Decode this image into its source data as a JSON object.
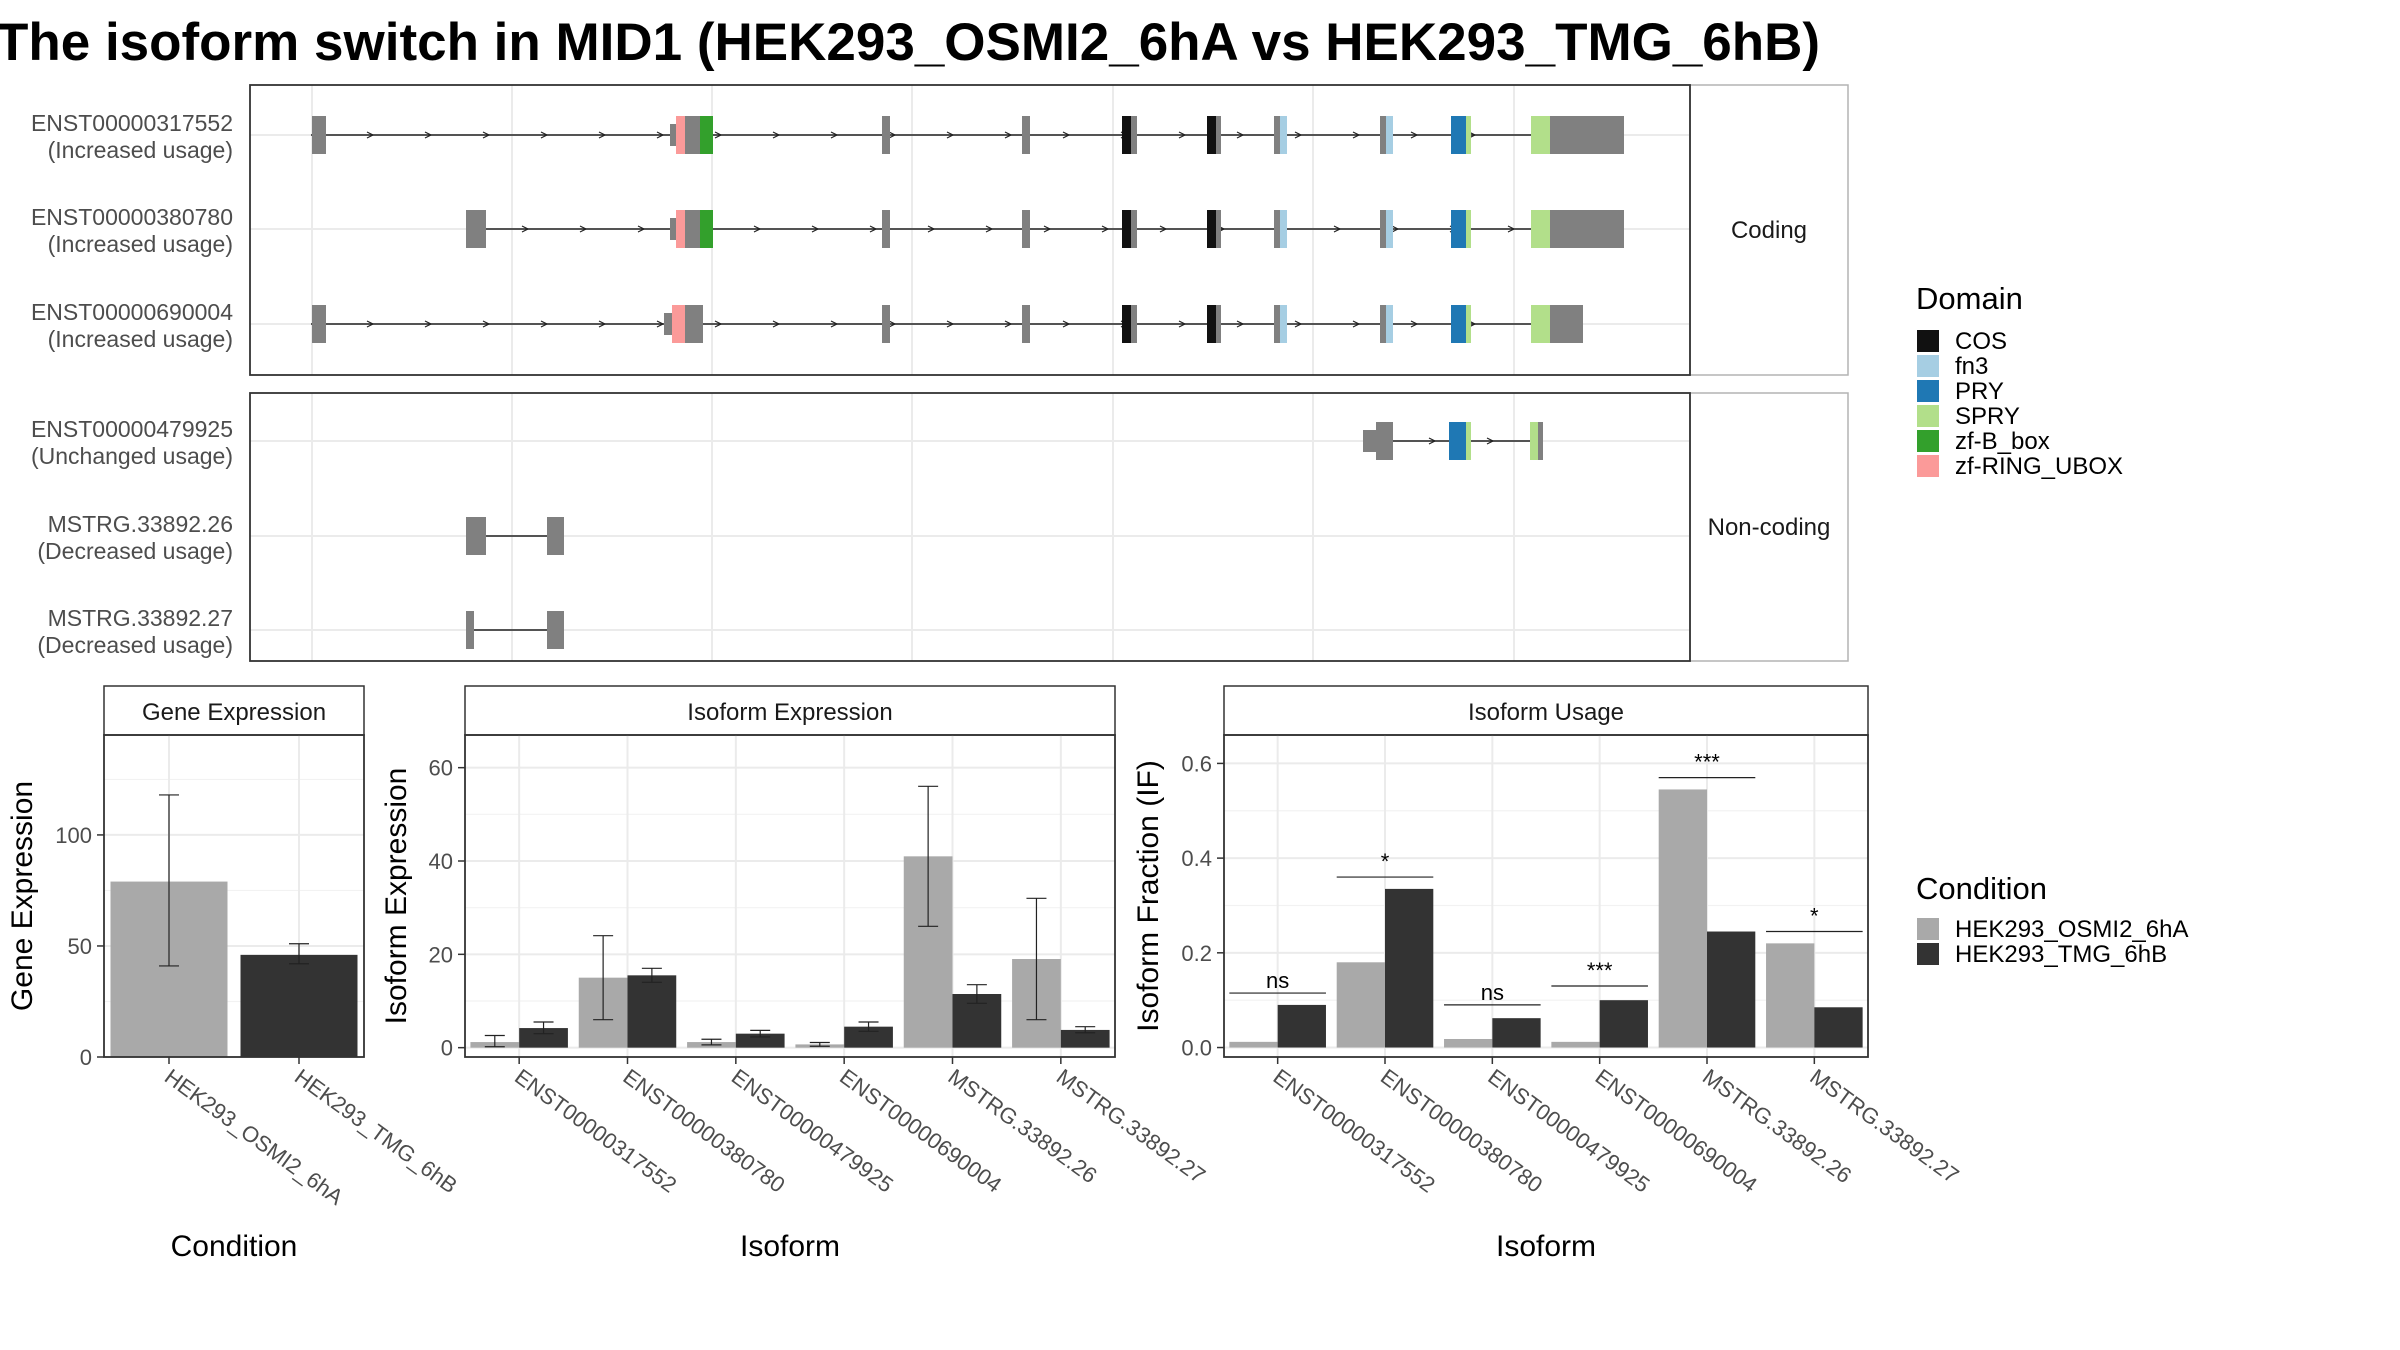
{
  "title": "The isoform switch in MID1 (HEK293_OSMI2_6hA vs HEK293_TMG_6hB)",
  "colors": {
    "domains": {
      "COS": "#111111",
      "fn3": "#a6cee3",
      "PRY": "#1f78b4",
      "SPRY": "#b2df8a",
      "zf-B_box": "#33a02c",
      "zf-RING_UBOX": "#fb9a99"
    },
    "exon": "#808080",
    "cond1": "#a9a9a9",
    "cond2": "#333333"
  },
  "legends": {
    "domain": {
      "title": "Domain",
      "items": [
        "COS",
        "fn3",
        "PRY",
        "SPRY",
        "zf-B_box",
        "zf-RING_UBOX"
      ]
    },
    "condition": {
      "title": "Condition",
      "items": [
        "HEK293_OSMI2_6hA",
        "HEK293_TMG_6hB"
      ]
    }
  },
  "structure": {
    "panels": [
      {
        "label": "Coding",
        "transcripts": [
          {
            "id": "ENST00000317552",
            "note": "(Increased usage)"
          },
          {
            "id": "ENST00000380780",
            "note": "(Increased usage)"
          },
          {
            "id": "ENST00000690004",
            "note": "(Increased usage)"
          }
        ]
      },
      {
        "label": "Non-coding",
        "transcripts": [
          {
            "id": "ENST00000479925",
            "note": "(Unchanged usage)"
          },
          {
            "id": "MSTRG.33892.26",
            "note": "(Decreased usage)"
          },
          {
            "id": "MSTRG.33892.27",
            "note": "(Decreased usage)"
          }
        ]
      }
    ]
  },
  "chart_data": [
    {
      "type": "bar",
      "title": "Gene Expression",
      "xlabel": "Condition",
      "ylabel": "Gene Expression",
      "categories": [
        "HEK293_OSMI2_6hA",
        "HEK293_TMG_6hB"
      ],
      "values": [
        79,
        46
      ],
      "errors": [
        [
          41,
          118
        ],
        [
          42,
          51
        ]
      ],
      "ylim": [
        0,
        145
      ],
      "yticks": [
        0,
        50,
        100
      ]
    },
    {
      "type": "bar",
      "title": "Isoform Expression",
      "xlabel": "Isoform",
      "ylabel": "Isoform Expression",
      "categories": [
        "ENST00000317552",
        "ENST00000380780",
        "ENST00000479925",
        "ENST00000690004",
        "MSTRG.33892.26",
        "MSTRG.33892.27"
      ],
      "series": [
        {
          "name": "HEK293_OSMI2_6hA",
          "values": [
            1.2,
            15,
            1.2,
            0.7,
            41,
            19
          ],
          "errors": [
            [
              0.2,
              2.6
            ],
            [
              6,
              24
            ],
            [
              0.6,
              1.8
            ],
            [
              0.3,
              1.1
            ],
            [
              26,
              56
            ],
            [
              6,
              32
            ]
          ]
        },
        {
          "name": "HEK293_TMG_6hB",
          "values": [
            4.2,
            15.5,
            3,
            4.5,
            11.5,
            3.8
          ],
          "errors": [
            [
              3,
              5.5
            ],
            [
              14,
              17
            ],
            [
              2.3,
              3.7
            ],
            [
              3.5,
              5.5
            ],
            [
              9.5,
              13.5
            ],
            [
              3.2,
              4.5
            ]
          ]
        }
      ],
      "ylim": [
        -2,
        67
      ],
      "yticks": [
        0,
        20,
        40,
        60
      ]
    },
    {
      "type": "bar",
      "title": "Isoform Usage",
      "xlabel": "Isoform",
      "ylabel": "Isoform Fraction (IF)",
      "categories": [
        "ENST00000317552",
        "ENST00000380780",
        "ENST00000479925",
        "ENST00000690004",
        "MSTRG.33892.26",
        "MSTRG.33892.27"
      ],
      "series": [
        {
          "name": "HEK293_OSMI2_6hA",
          "values": [
            0.012,
            0.18,
            0.018,
            0.012,
            0.545,
            0.22
          ]
        },
        {
          "name": "HEK293_TMG_6hB",
          "values": [
            0.09,
            0.335,
            0.062,
            0.1,
            0.245,
            0.085
          ]
        }
      ],
      "significance": [
        "ns",
        "*",
        "ns",
        "***",
        "***",
        "*"
      ],
      "significance_levels": [
        0.115,
        0.36,
        0.09,
        0.13,
        0.57,
        0.245
      ],
      "ylim": [
        -0.02,
        0.66
      ],
      "yticks": [
        0.0,
        0.2,
        0.4,
        0.6
      ],
      "ytick_labels": [
        "0.0",
        "0.2",
        "0.4",
        "0.6"
      ]
    }
  ]
}
